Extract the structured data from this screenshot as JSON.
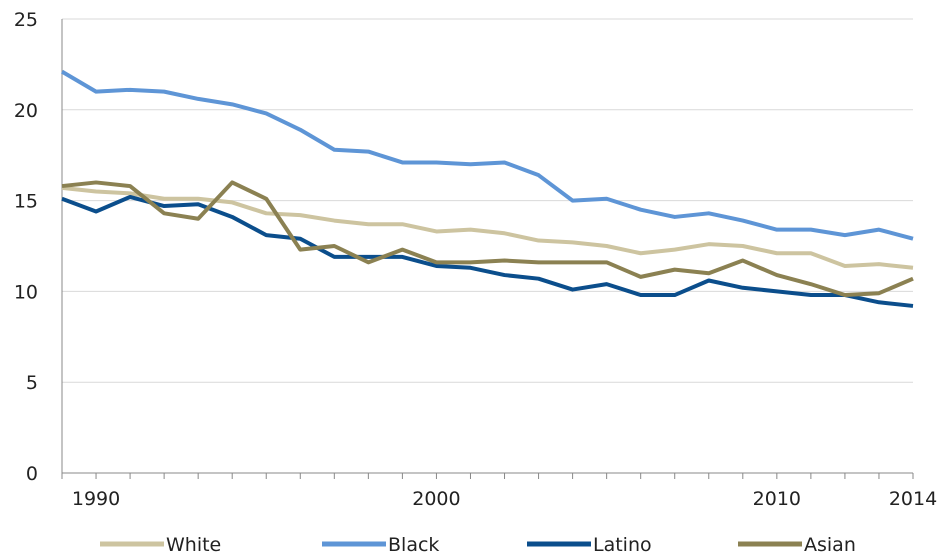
{
  "chart_data": {
    "type": "line",
    "title": "",
    "xlabel": "",
    "ylabel": "",
    "xlim": [
      1989,
      2014
    ],
    "ylim": [
      0,
      25
    ],
    "grid": "horizontal",
    "legend_position": "bottom",
    "y_ticks": [
      "0",
      "5",
      "10",
      "15",
      "20",
      "25"
    ],
    "x_ticks": [
      {
        "value": 1990,
        "label": "1990"
      },
      {
        "value": 2000,
        "label": "2000"
      },
      {
        "value": 2010,
        "label": "2010"
      },
      {
        "value": 2014,
        "label": "2014"
      }
    ],
    "x": [
      1989,
      1990,
      1991,
      1992,
      1993,
      1994,
      1995,
      1996,
      1997,
      1998,
      1999,
      2000,
      2001,
      2002,
      2003,
      2004,
      2005,
      2006,
      2007,
      2008,
      2009,
      2010,
      2011,
      2012,
      2013,
      2014
    ],
    "series": [
      {
        "name": "White",
        "color": "#cdc4a0",
        "values": [
          15.7,
          15.5,
          15.4,
          15.1,
          15.1,
          14.9,
          14.3,
          14.2,
          13.9,
          13.7,
          13.7,
          13.3,
          13.4,
          13.2,
          12.8,
          12.7,
          12.5,
          12.1,
          12.3,
          12.6,
          12.5,
          12.1,
          12.1,
          11.4,
          11.5,
          11.3
        ]
      },
      {
        "name": "Black",
        "color": "#5e95d6",
        "values": [
          22.1,
          21.0,
          21.1,
          21.0,
          20.6,
          20.3,
          19.8,
          18.9,
          17.8,
          17.7,
          17.1,
          17.1,
          17.0,
          17.1,
          16.4,
          15.0,
          15.1,
          14.5,
          14.1,
          14.3,
          13.9,
          13.4,
          13.4,
          13.1,
          13.4,
          12.9
        ]
      },
      {
        "name": "Latino",
        "color": "#0b4e8c",
        "values": [
          15.1,
          14.4,
          15.2,
          14.7,
          14.8,
          14.1,
          13.1,
          12.9,
          11.9,
          11.9,
          11.9,
          11.4,
          11.3,
          10.9,
          10.7,
          10.1,
          10.4,
          9.8,
          9.8,
          10.6,
          10.2,
          10.0,
          9.8,
          9.8,
          9.4,
          9.2
        ]
      },
      {
        "name": "Asian",
        "color": "#8b8152",
        "values": [
          15.8,
          16.0,
          15.8,
          14.3,
          14.0,
          16.0,
          15.1,
          12.3,
          12.5,
          11.6,
          12.3,
          11.6,
          11.6,
          11.7,
          11.6,
          11.6,
          11.6,
          10.8,
          11.2,
          11.0,
          11.7,
          10.9,
          10.4,
          9.8,
          9.9,
          10.7
        ]
      }
    ]
  }
}
